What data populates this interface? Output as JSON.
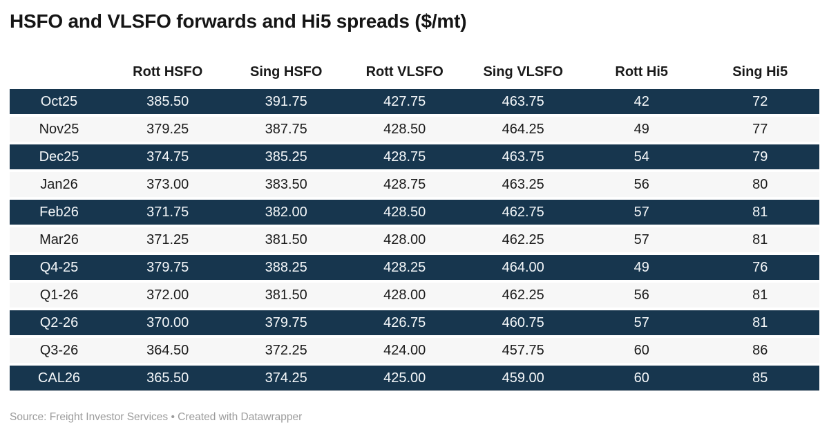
{
  "title": "HSFO and VLSFO forwards and Hi5 spreads ($/mt)",
  "chart_data": {
    "type": "table",
    "title": "HSFO and VLSFO forwards and Hi5 spreads ($/mt)",
    "columns": [
      "",
      "Rott HSFO",
      "Sing HSFO",
      "Rott VLSFO",
      "Sing VLSFO",
      "Rott Hi5",
      "Sing Hi5"
    ],
    "rows": [
      {
        "label": "Oct25",
        "values": [
          "385.50",
          "391.75",
          "427.75",
          "463.75",
          "42",
          "72"
        ]
      },
      {
        "label": "Nov25",
        "values": [
          "379.25",
          "387.75",
          "428.50",
          "464.25",
          "49",
          "77"
        ]
      },
      {
        "label": "Dec25",
        "values": [
          "374.75",
          "385.25",
          "428.75",
          "463.75",
          "54",
          "79"
        ]
      },
      {
        "label": "Jan26",
        "values": [
          "373.00",
          "383.50",
          "428.75",
          "463.25",
          "56",
          "80"
        ]
      },
      {
        "label": "Feb26",
        "values": [
          "371.75",
          "382.00",
          "428.50",
          "462.75",
          "57",
          "81"
        ]
      },
      {
        "label": "Mar26",
        "values": [
          "371.25",
          "381.50",
          "428.00",
          "462.25",
          "57",
          "81"
        ]
      },
      {
        "label": "Q4-25",
        "values": [
          "379.75",
          "388.25",
          "428.25",
          "464.00",
          "49",
          "76"
        ]
      },
      {
        "label": "Q1-26",
        "values": [
          "372.00",
          "381.50",
          "428.00",
          "462.25",
          "56",
          "81"
        ]
      },
      {
        "label": "Q2-26",
        "values": [
          "370.00",
          "379.75",
          "426.75",
          "460.75",
          "57",
          "81"
        ]
      },
      {
        "label": "Q3-26",
        "values": [
          "364.50",
          "372.25",
          "424.00",
          "457.75",
          "60",
          "86"
        ]
      },
      {
        "label": "CAL26",
        "values": [
          "365.50",
          "374.25",
          "425.00",
          "459.00",
          "60",
          "85"
        ]
      }
    ],
    "layout": {
      "row_striping": "alternating starting dark",
      "alignment": "center",
      "grid": "off"
    }
  },
  "footer": {
    "text": "Source: Freight Investor Services • Created with Datawrapper"
  },
  "colors": {
    "dark_row_bg": "#17364e",
    "dark_row_text": "#f5f8fa",
    "light_row_bg": "#f7f7f7",
    "body_text": "#1a1a1a",
    "header_text": "#1a1a1a",
    "title_text": "#151515",
    "footer_text": "#9b9b9b",
    "divider": "#e0e0e0"
  }
}
